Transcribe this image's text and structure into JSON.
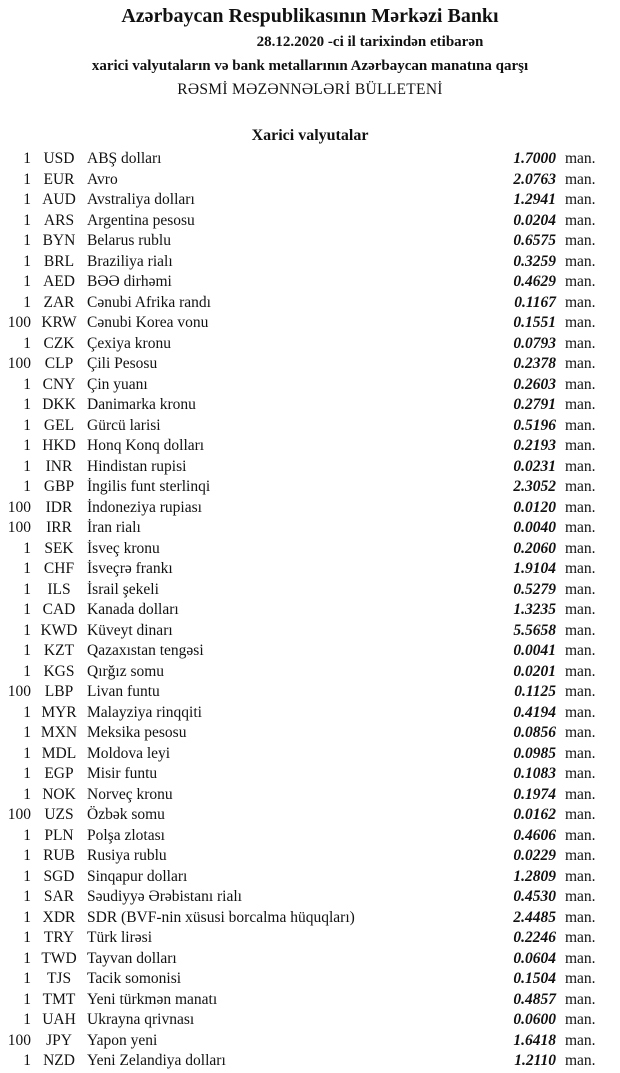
{
  "header": {
    "title": "Azərbaycan Respublikasının Mərkəzi Bankı",
    "date_line": "28.12.2020 -ci il tarixindən etibarən",
    "subtitle": "xarici valyutaların və bank metallarının Azərbaycan manatına qarşı",
    "bulletin": "RƏSMİ MƏZƏNNƏLƏRİ BÜLLETENİ"
  },
  "section_title": "Xarici valyutalar",
  "unit": "man.",
  "rows": [
    {
      "qty": "1",
      "code": "USD",
      "name": "ABŞ dolları",
      "value": "1.7000"
    },
    {
      "qty": "1",
      "code": "EUR",
      "name": "Avro",
      "value": "2.0763"
    },
    {
      "qty": "1",
      "code": "AUD",
      "name": "Avstraliya dolları",
      "value": "1.2941"
    },
    {
      "qty": "1",
      "code": "ARS",
      "name": "Argentina pesosu",
      "value": "0.0204"
    },
    {
      "qty": "1",
      "code": "BYN",
      "name": "Belarus rublu",
      "value": "0.6575"
    },
    {
      "qty": "1",
      "code": "BRL",
      "name": "Braziliya rialı",
      "value": "0.3259"
    },
    {
      "qty": "1",
      "code": "AED",
      "name": "BƏƏ dirhəmi",
      "value": "0.4629"
    },
    {
      "qty": "1",
      "code": "ZAR",
      "name": "Cənubi Afrika randı",
      "value": "0.1167"
    },
    {
      "qty": "100",
      "code": "KRW",
      "name": "Cənubi Korea vonu",
      "value": "0.1551"
    },
    {
      "qty": "1",
      "code": "CZK",
      "name": "Çexiya kronu",
      "value": "0.0793"
    },
    {
      "qty": "100",
      "code": "CLP",
      "name": "Çili Pesosu",
      "value": "0.2378"
    },
    {
      "qty": "1",
      "code": "CNY",
      "name": "Çin yuanı",
      "value": "0.2603"
    },
    {
      "qty": "1",
      "code": "DKK",
      "name": "Danimarka kronu",
      "value": "0.2791"
    },
    {
      "qty": "1",
      "code": "GEL",
      "name": "Gürcü larisi",
      "value": "0.5196"
    },
    {
      "qty": "1",
      "code": "HKD",
      "name": "Honq Konq dolları",
      "value": "0.2193"
    },
    {
      "qty": "1",
      "code": "INR",
      "name": "Hindistan rupisi",
      "value": "0.0231"
    },
    {
      "qty": "1",
      "code": "GBP",
      "name": "İngilis funt sterlinqi",
      "value": "2.3052"
    },
    {
      "qty": "100",
      "code": "IDR",
      "name": "İndoneziya rupiası",
      "value": "0.0120"
    },
    {
      "qty": "100",
      "code": "IRR",
      "name": "İran rialı",
      "value": "0.0040"
    },
    {
      "qty": "1",
      "code": "SEK",
      "name": "İsveç kronu",
      "value": "0.2060"
    },
    {
      "qty": "1",
      "code": "CHF",
      "name": "İsveçrə frankı",
      "value": "1.9104"
    },
    {
      "qty": "1",
      "code": "ILS",
      "name": "İsrail şekeli",
      "value": "0.5279"
    },
    {
      "qty": "1",
      "code": "CAD",
      "name": "Kanada dolları",
      "value": "1.3235"
    },
    {
      "qty": "1",
      "code": "KWD",
      "name": "Küveyt dinarı",
      "value": "5.5658"
    },
    {
      "qty": "1",
      "code": "KZT",
      "name": "Qazaxıstan tengəsi",
      "value": "0.0041"
    },
    {
      "qty": "1",
      "code": "KGS",
      "name": "Qırğız somu",
      "value": "0.0201"
    },
    {
      "qty": "100",
      "code": "LBP",
      "name": "Livan funtu",
      "value": "0.1125"
    },
    {
      "qty": "1",
      "code": "MYR",
      "name": "Malayziya rinqqiti",
      "value": "0.4194"
    },
    {
      "qty": "1",
      "code": "MXN",
      "name": "Meksika pesosu",
      "value": "0.0856"
    },
    {
      "qty": "1",
      "code": "MDL",
      "name": "Moldova leyi",
      "value": "0.0985"
    },
    {
      "qty": "1",
      "code": "EGP",
      "name": "Misir funtu",
      "value": "0.1083"
    },
    {
      "qty": "1",
      "code": "NOK",
      "name": "Norveç kronu",
      "value": "0.1974"
    },
    {
      "qty": "100",
      "code": "UZS",
      "name": "Özbək somu",
      "value": "0.0162"
    },
    {
      "qty": "1",
      "code": "PLN",
      "name": "Polşa zlotası",
      "value": "0.4606"
    },
    {
      "qty": "1",
      "code": "RUB",
      "name": "Rusiya rublu",
      "value": "0.0229"
    },
    {
      "qty": "1",
      "code": "SGD",
      "name": "Sinqapur dolları",
      "value": "1.2809"
    },
    {
      "qty": "1",
      "code": "SAR",
      "name": "Səudiyyə Ərəbistanı rialı",
      "value": "0.4530"
    },
    {
      "qty": "1",
      "code": "XDR",
      "name": "SDR (BVF-nin xüsusi borcalma hüquqları)",
      "value": "2.4485"
    },
    {
      "qty": "1",
      "code": "TRY",
      "name": "Türk lirəsi",
      "value": "0.2246"
    },
    {
      "qty": "1",
      "code": "TWD",
      "name": "Tayvan dolları",
      "value": "0.0604"
    },
    {
      "qty": "1",
      "code": "TJS",
      "name": "Tacik somonisi",
      "value": "0.1504"
    },
    {
      "qty": "1",
      "code": "TMT",
      "name": "Yeni türkmən manatı",
      "value": "0.4857"
    },
    {
      "qty": "1",
      "code": "UAH",
      "name": "Ukrayna qrivnası",
      "value": "0.0600"
    },
    {
      "qty": "100",
      "code": "JPY",
      "name": "Yapon yeni",
      "value": "1.6418"
    },
    {
      "qty": "1",
      "code": "NZD",
      "name": "Yeni Zelandiya dolları",
      "value": "1.2110"
    }
  ]
}
